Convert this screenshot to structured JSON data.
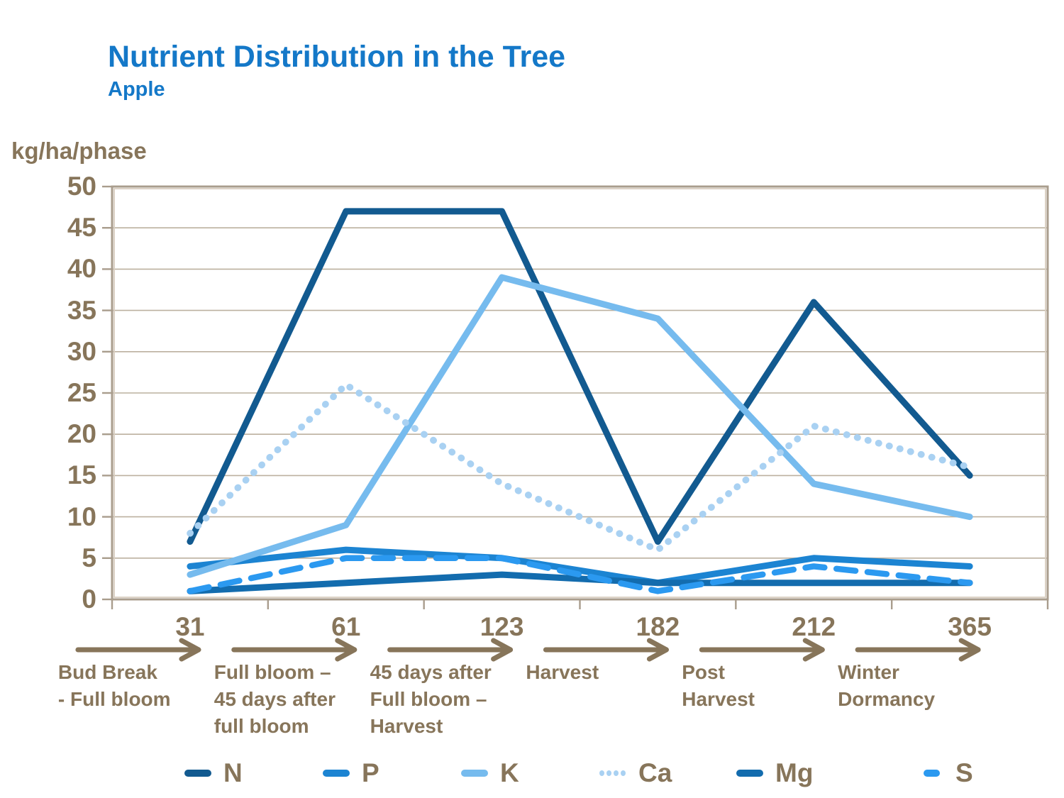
{
  "slide": {
    "title": "Nutrient Distribution in the Tree",
    "subtitle": "Apple",
    "y_unit_label": "kg/ha/phase"
  },
  "colors": {
    "title_blue": "#1478C8",
    "axis_text_brown": "#87755A",
    "frame": "#A99D8D",
    "frame_inner": "#D8CEC0",
    "gridline": "#BCB09F",
    "background": "#FFFFFF"
  },
  "chart_data": {
    "type": "line",
    "title": "Nutrient Distribution in the Tree",
    "subtitle": "Apple",
    "ylabel": "kg/ha/phase",
    "xlabel": "",
    "ylim": [
      0,
      50
    ],
    "ytick_interval": 5,
    "ytick_labels": [
      "0",
      "5",
      "10",
      "15",
      "20",
      "25",
      "30",
      "35",
      "40",
      "45",
      "50"
    ],
    "grid": true,
    "legend_position": "bottom",
    "categories": [
      "31",
      "61",
      "123",
      "182",
      "212",
      "365"
    ],
    "phases": [
      "Bud Break\n- Full bloom",
      "Full bloom –\n45 days after\nfull bloom",
      "45 days after\nFull bloom –\nHarvest",
      "Harvest",
      "Post\nHarvest",
      "Winter\nDormancy"
    ],
    "series": [
      {
        "name": "N",
        "color": "#125A90",
        "style": "solid",
        "values": [
          7,
          47,
          47,
          7,
          36,
          15
        ]
      },
      {
        "name": "P",
        "color": "#1C84D2",
        "style": "solid",
        "values": [
          4,
          6,
          5,
          2,
          5,
          4
        ]
      },
      {
        "name": "K",
        "color": "#76BBEE",
        "style": "solid",
        "values": [
          3,
          9,
          39,
          34,
          14,
          10
        ]
      },
      {
        "name": "Ca",
        "color": "#A9D1F2",
        "style": "dotted",
        "values": [
          8,
          26,
          14,
          6,
          21,
          16
        ]
      },
      {
        "name": "Mg",
        "color": "#136CAE",
        "style": "solid",
        "values": [
          1,
          2,
          3,
          2,
          2,
          2
        ]
      },
      {
        "name": "S",
        "color": "#2B99F0",
        "style": "dashed",
        "values": [
          1,
          5,
          5,
          1,
          4,
          2
        ]
      }
    ]
  }
}
